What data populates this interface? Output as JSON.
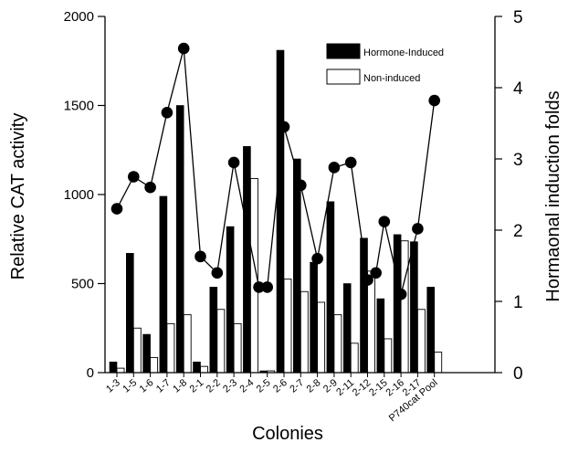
{
  "chart_data": {
    "type": "bar",
    "xlabel": "Colonies",
    "ylabel": "Relative CAT activity",
    "y2label": "Hormaonal induction folds",
    "ylim": [
      0,
      2000
    ],
    "y2lim": [
      0,
      5
    ],
    "yticks": [
      "0",
      "500",
      "1000",
      "1500",
      "2000"
    ],
    "y2ticks": [
      "0",
      "1",
      "2",
      "3",
      "4",
      "5"
    ],
    "categories": [
      "1-3",
      "1-5",
      "1-6",
      "1-7",
      "1-8",
      "2-1",
      "2-2",
      "2-3",
      "2-4",
      "2-5",
      "2-6",
      "2-7",
      "2-8",
      "2-9",
      "2-11",
      "2-12",
      "2-15",
      "2-16",
      "2-17",
      "P740cat Pool"
    ],
    "series": [
      {
        "name": "Hormone-Induced",
        "style": "solid-black",
        "values": [
          60,
          670,
          215,
          990,
          1500,
          60,
          480,
          820,
          1270,
          10,
          1810,
          1200,
          620,
          960,
          500,
          755,
          415,
          775,
          735,
          480
        ]
      },
      {
        "name": "Non-induced",
        "style": "white-outline",
        "values": [
          25,
          250,
          85,
          275,
          325,
          35,
          355,
          275,
          1090,
          10,
          525,
          455,
          395,
          325,
          165,
          570,
          190,
          740,
          355,
          115
        ]
      },
      {
        "style": "line-markers",
        "axis": "right",
        "values": [
          2.3,
          2.75,
          2.6,
          3.65,
          4.55,
          1.63,
          1.4,
          2.95,
          null,
          1.2,
          3.45,
          2.63,
          1.6,
          2.88,
          2.95,
          1.3,
          2.12,
          1.1,
          2.02,
          3.82
        ]
      }
    ],
    "extra_line_points": [
      {
        "after_index": 8,
        "value": 1.2
      },
      {
        "after_index": 15,
        "value": 1.4
      }
    ],
    "legend_position": "top-right",
    "grid": false
  }
}
